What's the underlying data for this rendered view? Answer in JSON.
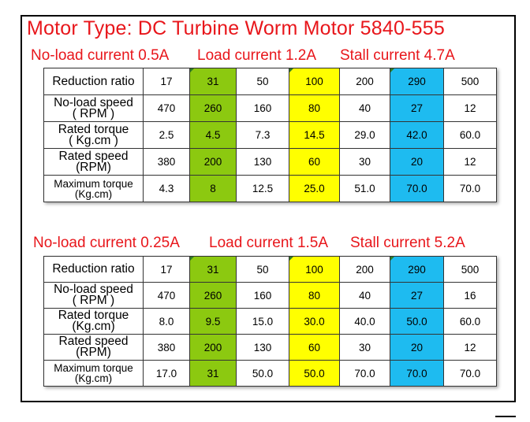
{
  "title": "Motor Type: DC Turbine Worm Motor 5840-555",
  "sections": [
    {
      "specs": [
        "No-load current 0.5A",
        "Load current 1.2A",
        "Stall current 4.7A"
      ],
      "rows": [
        {
          "label": [
            "Reduction ratio"
          ],
          "values": [
            "17",
            "31",
            "50",
            "100",
            "200",
            "290",
            "500"
          ]
        },
        {
          "label": [
            "No-load speed",
            "( RPM )"
          ],
          "values": [
            "470",
            "260",
            "160",
            "80",
            "40",
            "27",
            "12"
          ]
        },
        {
          "label": [
            "Rated torque",
            "( Kg.cm )"
          ],
          "values": [
            "2.5",
            "4.5",
            "7.3",
            "14.5",
            "29.0",
            "42.0",
            "60.0"
          ]
        },
        {
          "label": [
            "Rated speed",
            "(RPM)"
          ],
          "values": [
            "380",
            "200",
            "130",
            "60",
            "30",
            "20",
            "12"
          ]
        },
        {
          "label": [
            "Maximum torque",
            "(Kg.cm)"
          ],
          "values": [
            "4.3",
            "8",
            "12.5",
            "25.0",
            "51.0",
            "70.0",
            "70.0"
          ]
        }
      ]
    },
    {
      "specs": [
        "No-load current 0.25A",
        "Load current 1.5A",
        "Stall current 5.2A"
      ],
      "rows": [
        {
          "label": [
            "Reduction ratio"
          ],
          "values": [
            "17",
            "31",
            "50",
            "100",
            "200",
            "290",
            "500"
          ]
        },
        {
          "label": [
            "No-load speed",
            "( RPM )"
          ],
          "values": [
            "470",
            "260",
            "160",
            "80",
            "40",
            "27",
            "16"
          ]
        },
        {
          "label": [
            "Rated torque",
            "(Kg.cm)"
          ],
          "values": [
            "8.0",
            "9.5",
            "15.0",
            "30.0",
            "40.0",
            "50.0",
            "60.0"
          ]
        },
        {
          "label": [
            "Rated speed",
            "(RPM)"
          ],
          "values": [
            "380",
            "200",
            "130",
            "60",
            "30",
            "20",
            "12"
          ]
        },
        {
          "label": [
            "Maximum torque",
            "(Kg.cm)"
          ],
          "values": [
            "17.0",
            "31",
            "50.0",
            "50.0",
            "70.0",
            "70.0",
            "70.0"
          ]
        }
      ]
    }
  ],
  "column_highlights": {
    "1": "#8cc910",
    "3": "#ffff00",
    "5": "#1ebbf0"
  }
}
